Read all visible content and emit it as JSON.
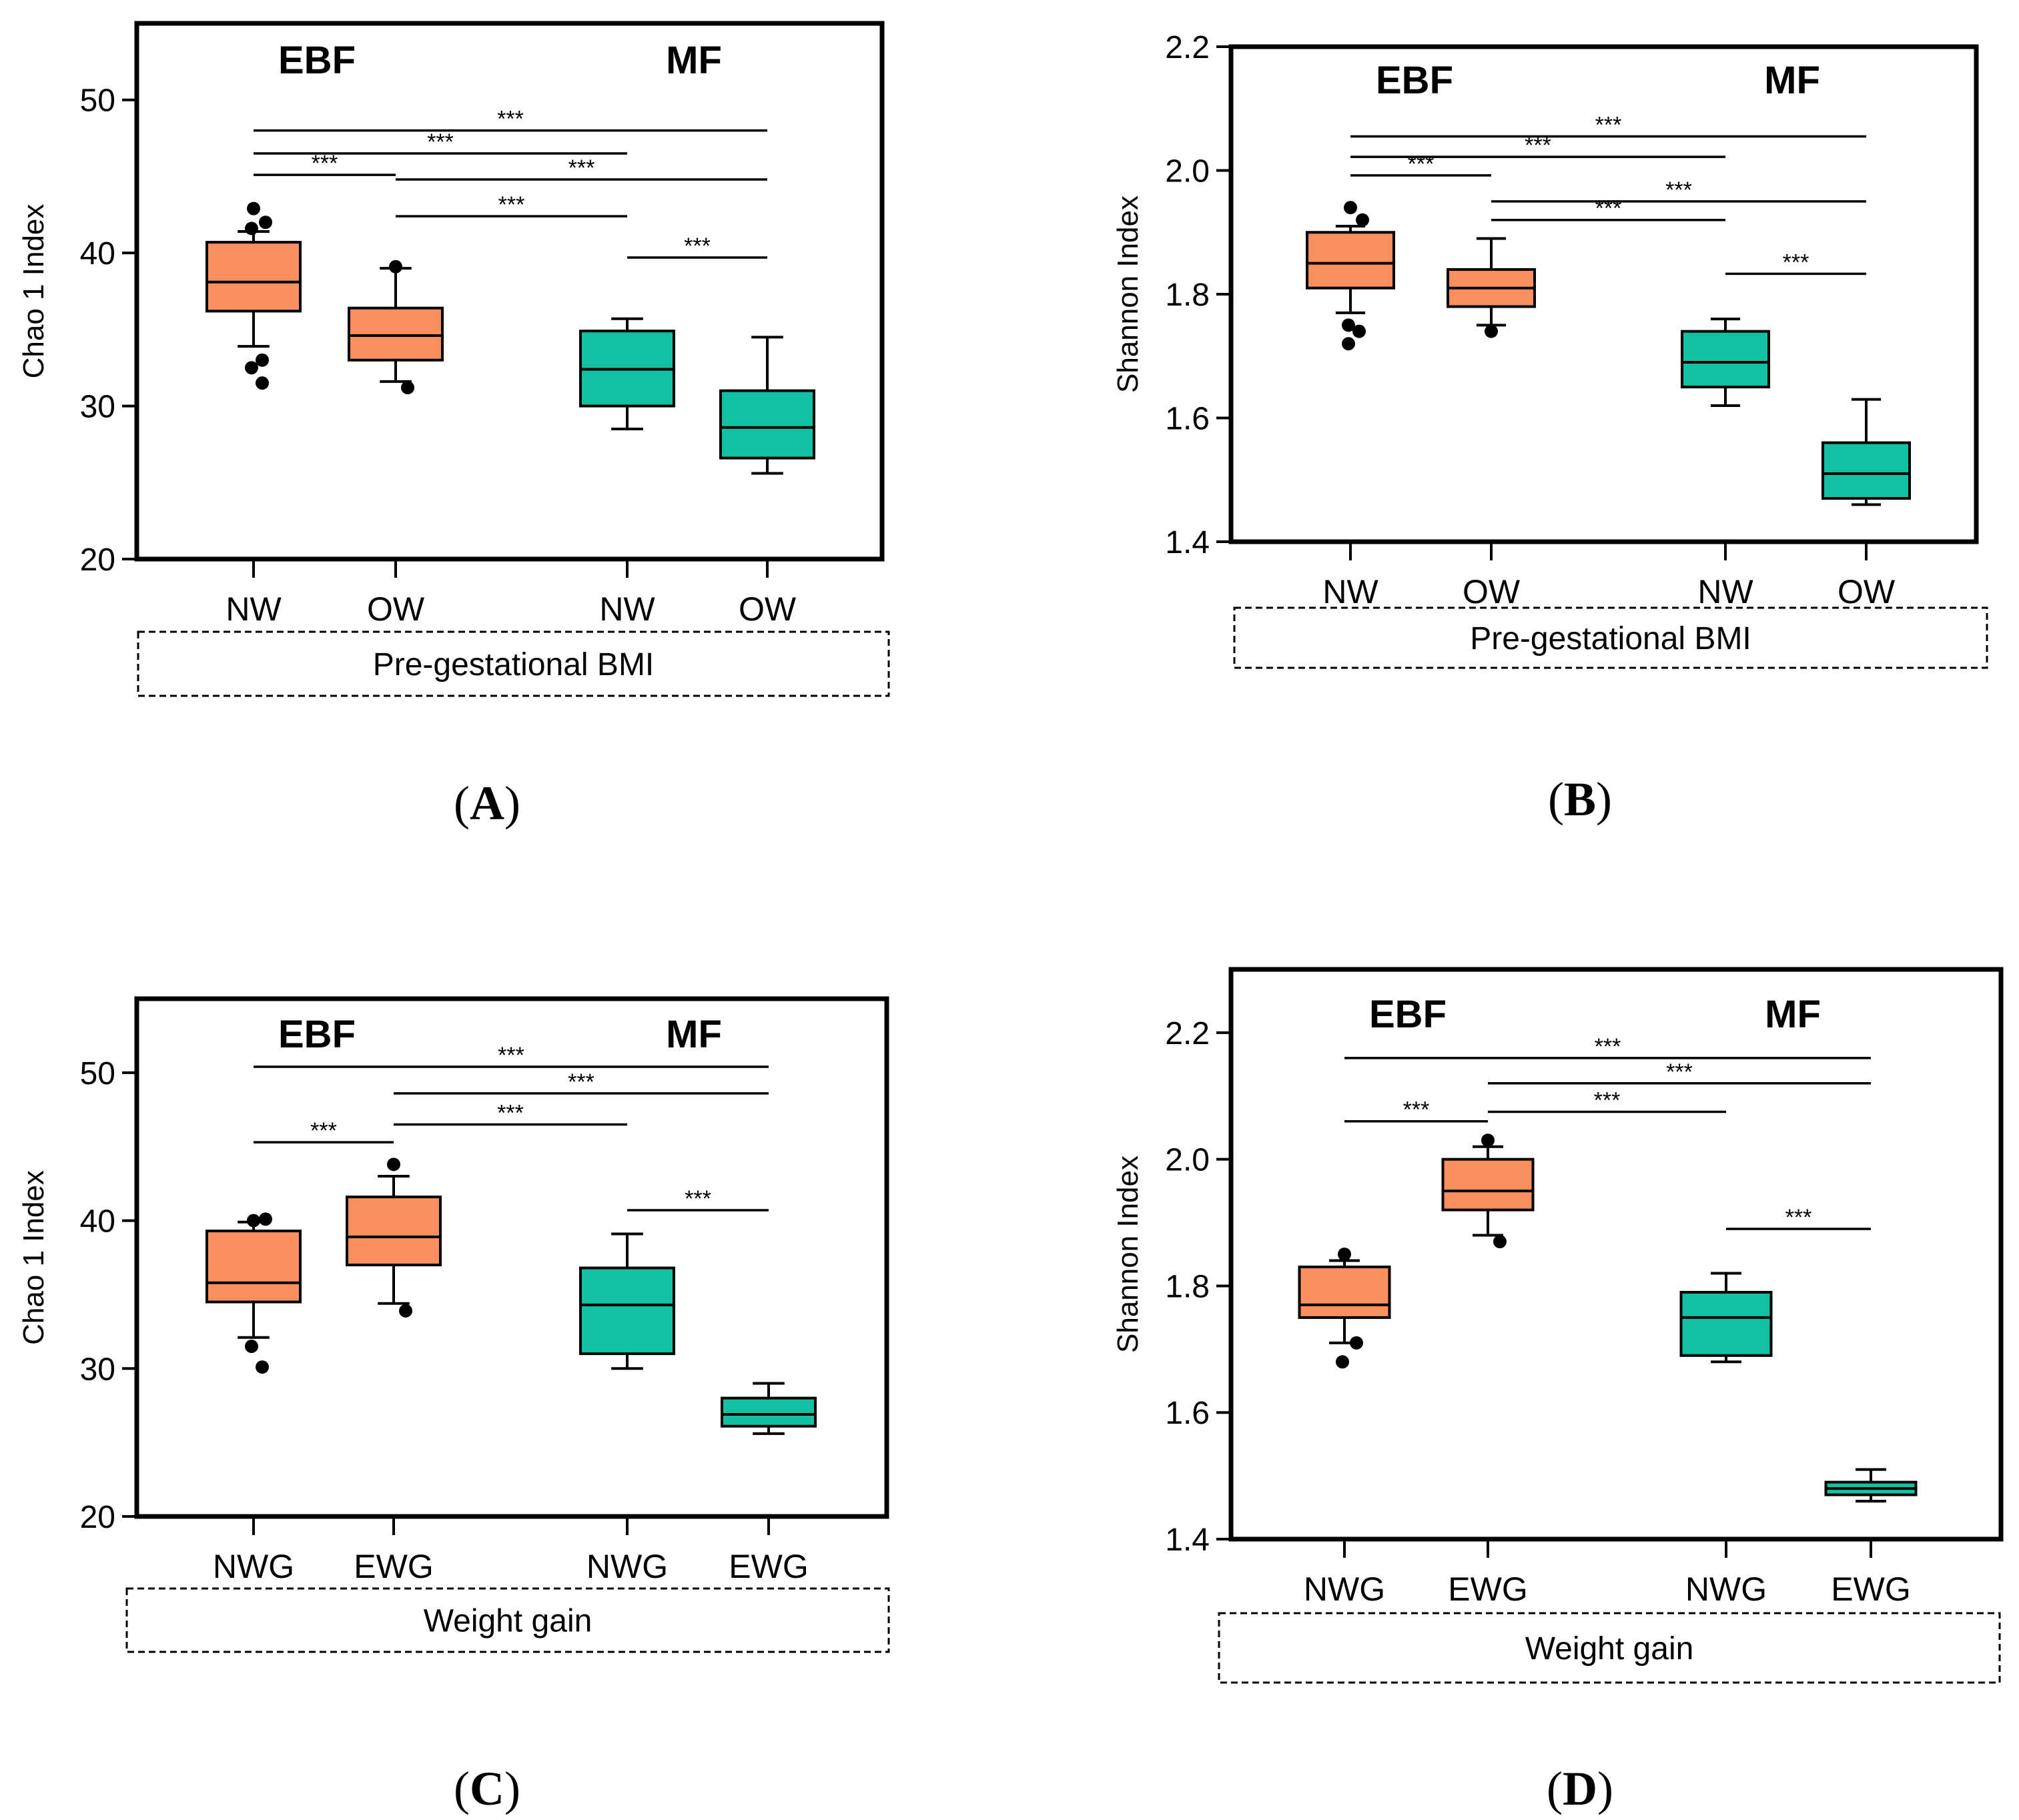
{
  "figure": {
    "colors": {
      "ebf": "#FA8F5E",
      "mf": "#12C0A2",
      "axis": "#000000"
    }
  },
  "chart_data": [
    {
      "id": "A",
      "type": "box",
      "panel_label": "A",
      "ylabel": "Chao 1 Index",
      "ylim": [
        20,
        55
      ],
      "yticks": [
        20,
        30,
        40,
        50
      ],
      "ytick_labels": [
        "20",
        "30",
        "40",
        "50"
      ],
      "group_labels": [
        "EBF",
        "MF"
      ],
      "categories": [
        "NW",
        "OW",
        "NW",
        "OW"
      ],
      "footer": "Pre-gestational BMI",
      "boxes": [
        {
          "group": "EBF",
          "category": "NW",
          "q1": 36.2,
          "median": 38.1,
          "q3": 40.7,
          "whisker_low": 33.9,
          "whisker_high": 41.4,
          "outliers": [
            42.9,
            42.0,
            41.6,
            33.0,
            32.5,
            31.5
          ]
        },
        {
          "group": "EBF",
          "category": "OW",
          "q1": 33.0,
          "median": 34.6,
          "q3": 36.4,
          "whisker_low": 31.6,
          "whisker_high": 39.0,
          "outliers": [
            39.1,
            31.2
          ]
        },
        {
          "group": "MF",
          "category": "NW",
          "q1": 30.0,
          "median": 32.4,
          "q3": 34.9,
          "whisker_low": 28.5,
          "whisker_high": 35.7,
          "outliers": []
        },
        {
          "group": "MF",
          "category": "OW",
          "q1": 26.6,
          "median": 28.6,
          "q3": 31.0,
          "whisker_low": 25.6,
          "whisker_high": 34.5,
          "outliers": []
        }
      ],
      "significance": [
        {
          "from": 0,
          "to": 3,
          "y": 48.0,
          "label": "***"
        },
        {
          "from": 0,
          "to": 2,
          "y": 46.5,
          "label": "***"
        },
        {
          "from": 0,
          "to": 1,
          "y": 45.1,
          "label": "***"
        },
        {
          "from": 1,
          "to": 3,
          "y": 44.8,
          "label": "***"
        },
        {
          "from": 1,
          "to": 2,
          "y": 42.4,
          "label": "***"
        },
        {
          "from": 2,
          "to": 3,
          "y": 39.7,
          "label": "***"
        }
      ]
    },
    {
      "id": "B",
      "type": "box",
      "panel_label": "B",
      "ylabel": "Shannon Index",
      "ylim": [
        1.4,
        2.2
      ],
      "yticks": [
        1.4,
        1.6,
        1.8,
        2.0,
        2.2
      ],
      "ytick_labels": [
        "1.4",
        "1.6",
        "1.8",
        "2.0",
        "2.2"
      ],
      "group_labels": [
        "EBF",
        "MF"
      ],
      "categories": [
        "NW",
        "OW",
        "NW",
        "OW"
      ],
      "footer": "Pre-gestational BMI",
      "boxes": [
        {
          "group": "EBF",
          "category": "NW",
          "q1": 1.81,
          "median": 1.85,
          "q3": 1.9,
          "whisker_low": 1.77,
          "whisker_high": 1.91,
          "outliers": [
            1.94,
            1.92,
            1.75,
            1.74,
            1.72
          ]
        },
        {
          "group": "EBF",
          "category": "OW",
          "q1": 1.78,
          "median": 1.81,
          "q3": 1.84,
          "whisker_low": 1.75,
          "whisker_high": 1.89,
          "outliers": [
            1.74
          ]
        },
        {
          "group": "MF",
          "category": "NW",
          "q1": 1.65,
          "median": 1.69,
          "q3": 1.74,
          "whisker_low": 1.62,
          "whisker_high": 1.76,
          "outliers": []
        },
        {
          "group": "MF",
          "category": "OW",
          "q1": 1.47,
          "median": 1.51,
          "q3": 1.56,
          "whisker_low": 1.46,
          "whisker_high": 1.63,
          "outliers": []
        }
      ],
      "significance": [
        {
          "from": 0,
          "to": 3,
          "y": 2.055,
          "label": "***"
        },
        {
          "from": 0,
          "to": 2,
          "y": 2.022,
          "label": "***"
        },
        {
          "from": 0,
          "to": 1,
          "y": 1.992,
          "label": "***"
        },
        {
          "from": 1,
          "to": 3,
          "y": 1.95,
          "label": "***"
        },
        {
          "from": 1,
          "to": 2,
          "y": 1.92,
          "label": "***"
        },
        {
          "from": 2,
          "to": 3,
          "y": 1.833,
          "label": "***"
        }
      ]
    },
    {
      "id": "C",
      "type": "box",
      "panel_label": "C",
      "ylabel": "Chao 1 Index",
      "ylim": [
        20,
        55
      ],
      "yticks": [
        20,
        30,
        40,
        50
      ],
      "ytick_labels": [
        "20",
        "30",
        "40",
        "50"
      ],
      "group_labels": [
        "EBF",
        "MF"
      ],
      "categories": [
        "NWG",
        "EWG",
        "NWG",
        "EWG"
      ],
      "footer": "Weight gain",
      "boxes": [
        {
          "group": "EBF",
          "category": "NWG",
          "q1": 34.5,
          "median": 35.8,
          "q3": 39.3,
          "whisker_low": 32.1,
          "whisker_high": 39.9,
          "outliers": [
            40.0,
            40.1,
            31.5,
            30.1
          ]
        },
        {
          "group": "EBF",
          "category": "EWG",
          "q1": 37.0,
          "median": 38.9,
          "q3": 41.6,
          "whisker_low": 34.4,
          "whisker_high": 43.0,
          "outliers": [
            43.8,
            33.9
          ]
        },
        {
          "group": "MF",
          "category": "NWG",
          "q1": 31.0,
          "median": 34.3,
          "q3": 36.8,
          "whisker_low": 30.0,
          "whisker_high": 39.1,
          "outliers": []
        },
        {
          "group": "MF",
          "category": "EWG",
          "q1": 26.1,
          "median": 26.9,
          "q3": 28.0,
          "whisker_low": 25.6,
          "whisker_high": 29.0,
          "outliers": []
        }
      ],
      "significance": [
        {
          "from": 0,
          "to": 3,
          "y": 50.4,
          "label": "***"
        },
        {
          "from": 1,
          "to": 3,
          "y": 48.6,
          "label": "***"
        },
        {
          "from": 1,
          "to": 2,
          "y": 46.5,
          "label": "***"
        },
        {
          "from": 0,
          "to": 1,
          "y": 45.3,
          "label": "***"
        },
        {
          "from": 2,
          "to": 3,
          "y": 40.7,
          "label": "***"
        }
      ]
    },
    {
      "id": "D",
      "type": "box",
      "panel_label": "D",
      "ylabel": "Shannon Index",
      "ylim": [
        1.4,
        2.3
      ],
      "yticks": [
        1.4,
        1.6,
        1.8,
        2.0,
        2.2
      ],
      "ytick_labels": [
        "1.4",
        "1.6",
        "1.8",
        "2.0",
        "2.2"
      ],
      "group_labels": [
        "EBF",
        "MF"
      ],
      "categories": [
        "NWG",
        "EWG",
        "NWG",
        "EWG"
      ],
      "footer": "Weight gain",
      "boxes": [
        {
          "group": "EBF",
          "category": "NWG",
          "q1": 1.75,
          "median": 1.77,
          "q3": 1.83,
          "whisker_low": 1.71,
          "whisker_high": 1.84,
          "outliers": [
            1.85,
            1.71,
            1.68
          ]
        },
        {
          "group": "EBF",
          "category": "EWG",
          "q1": 1.92,
          "median": 1.95,
          "q3": 2.0,
          "whisker_low": 1.88,
          "whisker_high": 2.02,
          "outliers": [
            2.03,
            1.87
          ]
        },
        {
          "group": "MF",
          "category": "NWG",
          "q1": 1.69,
          "median": 1.75,
          "q3": 1.79,
          "whisker_low": 1.68,
          "whisker_high": 1.82,
          "outliers": []
        },
        {
          "group": "MF",
          "category": "EWG",
          "q1": 1.47,
          "median": 1.48,
          "q3": 1.49,
          "whisker_low": 1.46,
          "whisker_high": 1.51,
          "outliers": []
        }
      ],
      "significance": [
        {
          "from": 0,
          "to": 3,
          "y": 2.16,
          "label": "***"
        },
        {
          "from": 1,
          "to": 3,
          "y": 2.12,
          "label": "***"
        },
        {
          "from": 1,
          "to": 2,
          "y": 2.075,
          "label": "***"
        },
        {
          "from": 0,
          "to": 1,
          "y": 2.06,
          "label": "***"
        },
        {
          "from": 2,
          "to": 3,
          "y": 1.89,
          "label": "***"
        }
      ]
    }
  ]
}
